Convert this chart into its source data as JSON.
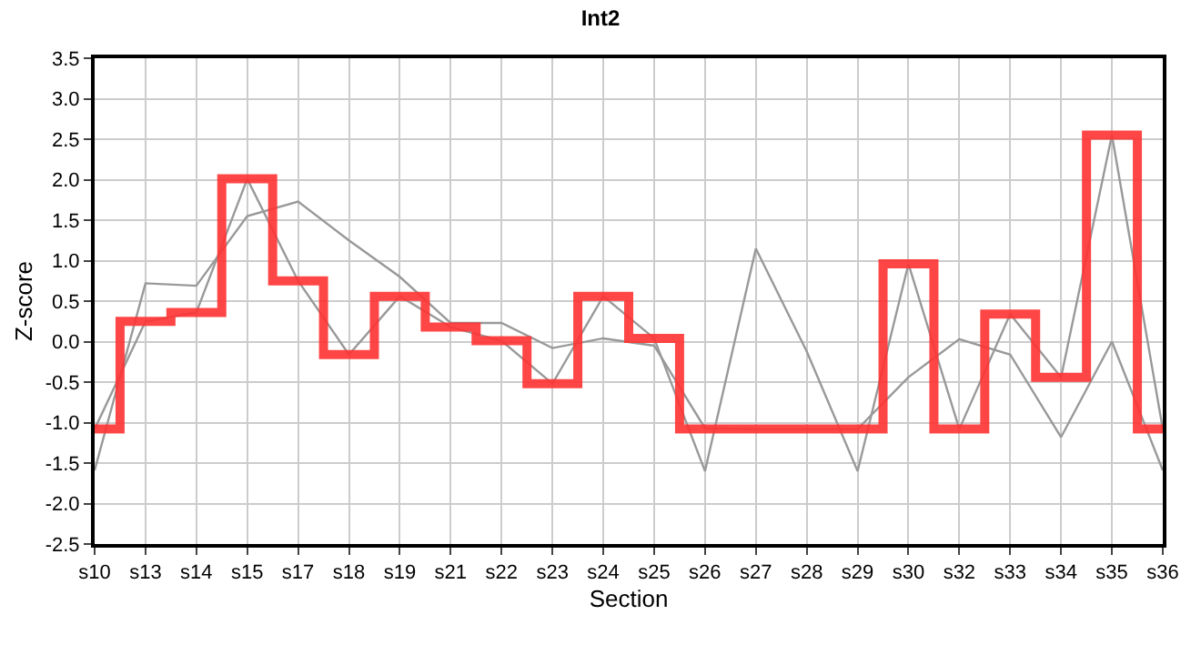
{
  "chart_data": {
    "type": "line",
    "title": "Int2",
    "xlabel": "Section",
    "ylabel": "Z-score",
    "categories": [
      "s10",
      "s13",
      "s14",
      "s15",
      "s17",
      "s18",
      "s19",
      "s21",
      "s22",
      "s23",
      "s24",
      "s25",
      "s26",
      "s27",
      "s28",
      "s29",
      "s30",
      "s32",
      "s33",
      "s34",
      "s35",
      "s36"
    ],
    "series": [
      {
        "color": "#999999",
        "values": [
          -1.08,
          0.25,
          0.36,
          2.01,
          0.75,
          -0.16,
          0.56,
          0.18,
          0.01,
          -0.52,
          0.56,
          0.04,
          -1.6,
          1.15,
          -0.12,
          -1.6,
          0.96,
          -1.08,
          0.34,
          -0.44,
          2.55,
          -1.08
        ]
      },
      {
        "color": "#999999",
        "values": [
          -1.59,
          0.72,
          0.69,
          1.55,
          1.73,
          1.25,
          0.8,
          0.23,
          0.23,
          -0.08,
          0.04,
          -0.05,
          -1.07,
          -1.08,
          -1.08,
          -1.08,
          -0.44,
          0.03,
          -0.16,
          -1.18,
          0.0,
          -1.59
        ]
      },
      {
        "type": "step",
        "color": "#ff3333",
        "values": [
          -1.08,
          0.25,
          0.36,
          2.01,
          0.75,
          -0.16,
          0.56,
          0.18,
          0.01,
          -0.52,
          0.56,
          0.04,
          -1.08,
          -1.08,
          -1.08,
          -1.08,
          0.96,
          -1.08,
          0.34,
          -0.44,
          2.55,
          -1.08
        ]
      }
    ],
    "ylim": [
      -2.5,
      3.5
    ],
    "yticks": [
      {
        "value": -2.5,
        "label": "-2.5"
      },
      {
        "value": -2,
        "label": "-2.0"
      },
      {
        "value": -1.5,
        "label": "-1.5"
      },
      {
        "value": -1,
        "label": "-1.0"
      },
      {
        "value": -0.5,
        "label": "-0.5"
      },
      {
        "value": 0,
        "label": "0.0"
      },
      {
        "value": 0.5,
        "label": "0.5"
      },
      {
        "value": 1,
        "label": "1.0"
      },
      {
        "value": 1.5,
        "label": "1.5"
      },
      {
        "value": 2,
        "label": "2.0"
      },
      {
        "value": 2.5,
        "label": "2.5"
      },
      {
        "value": 3,
        "label": "3.0"
      },
      {
        "value": 3.5,
        "label": "3.5"
      }
    ],
    "grid": true,
    "marker": "none"
  }
}
